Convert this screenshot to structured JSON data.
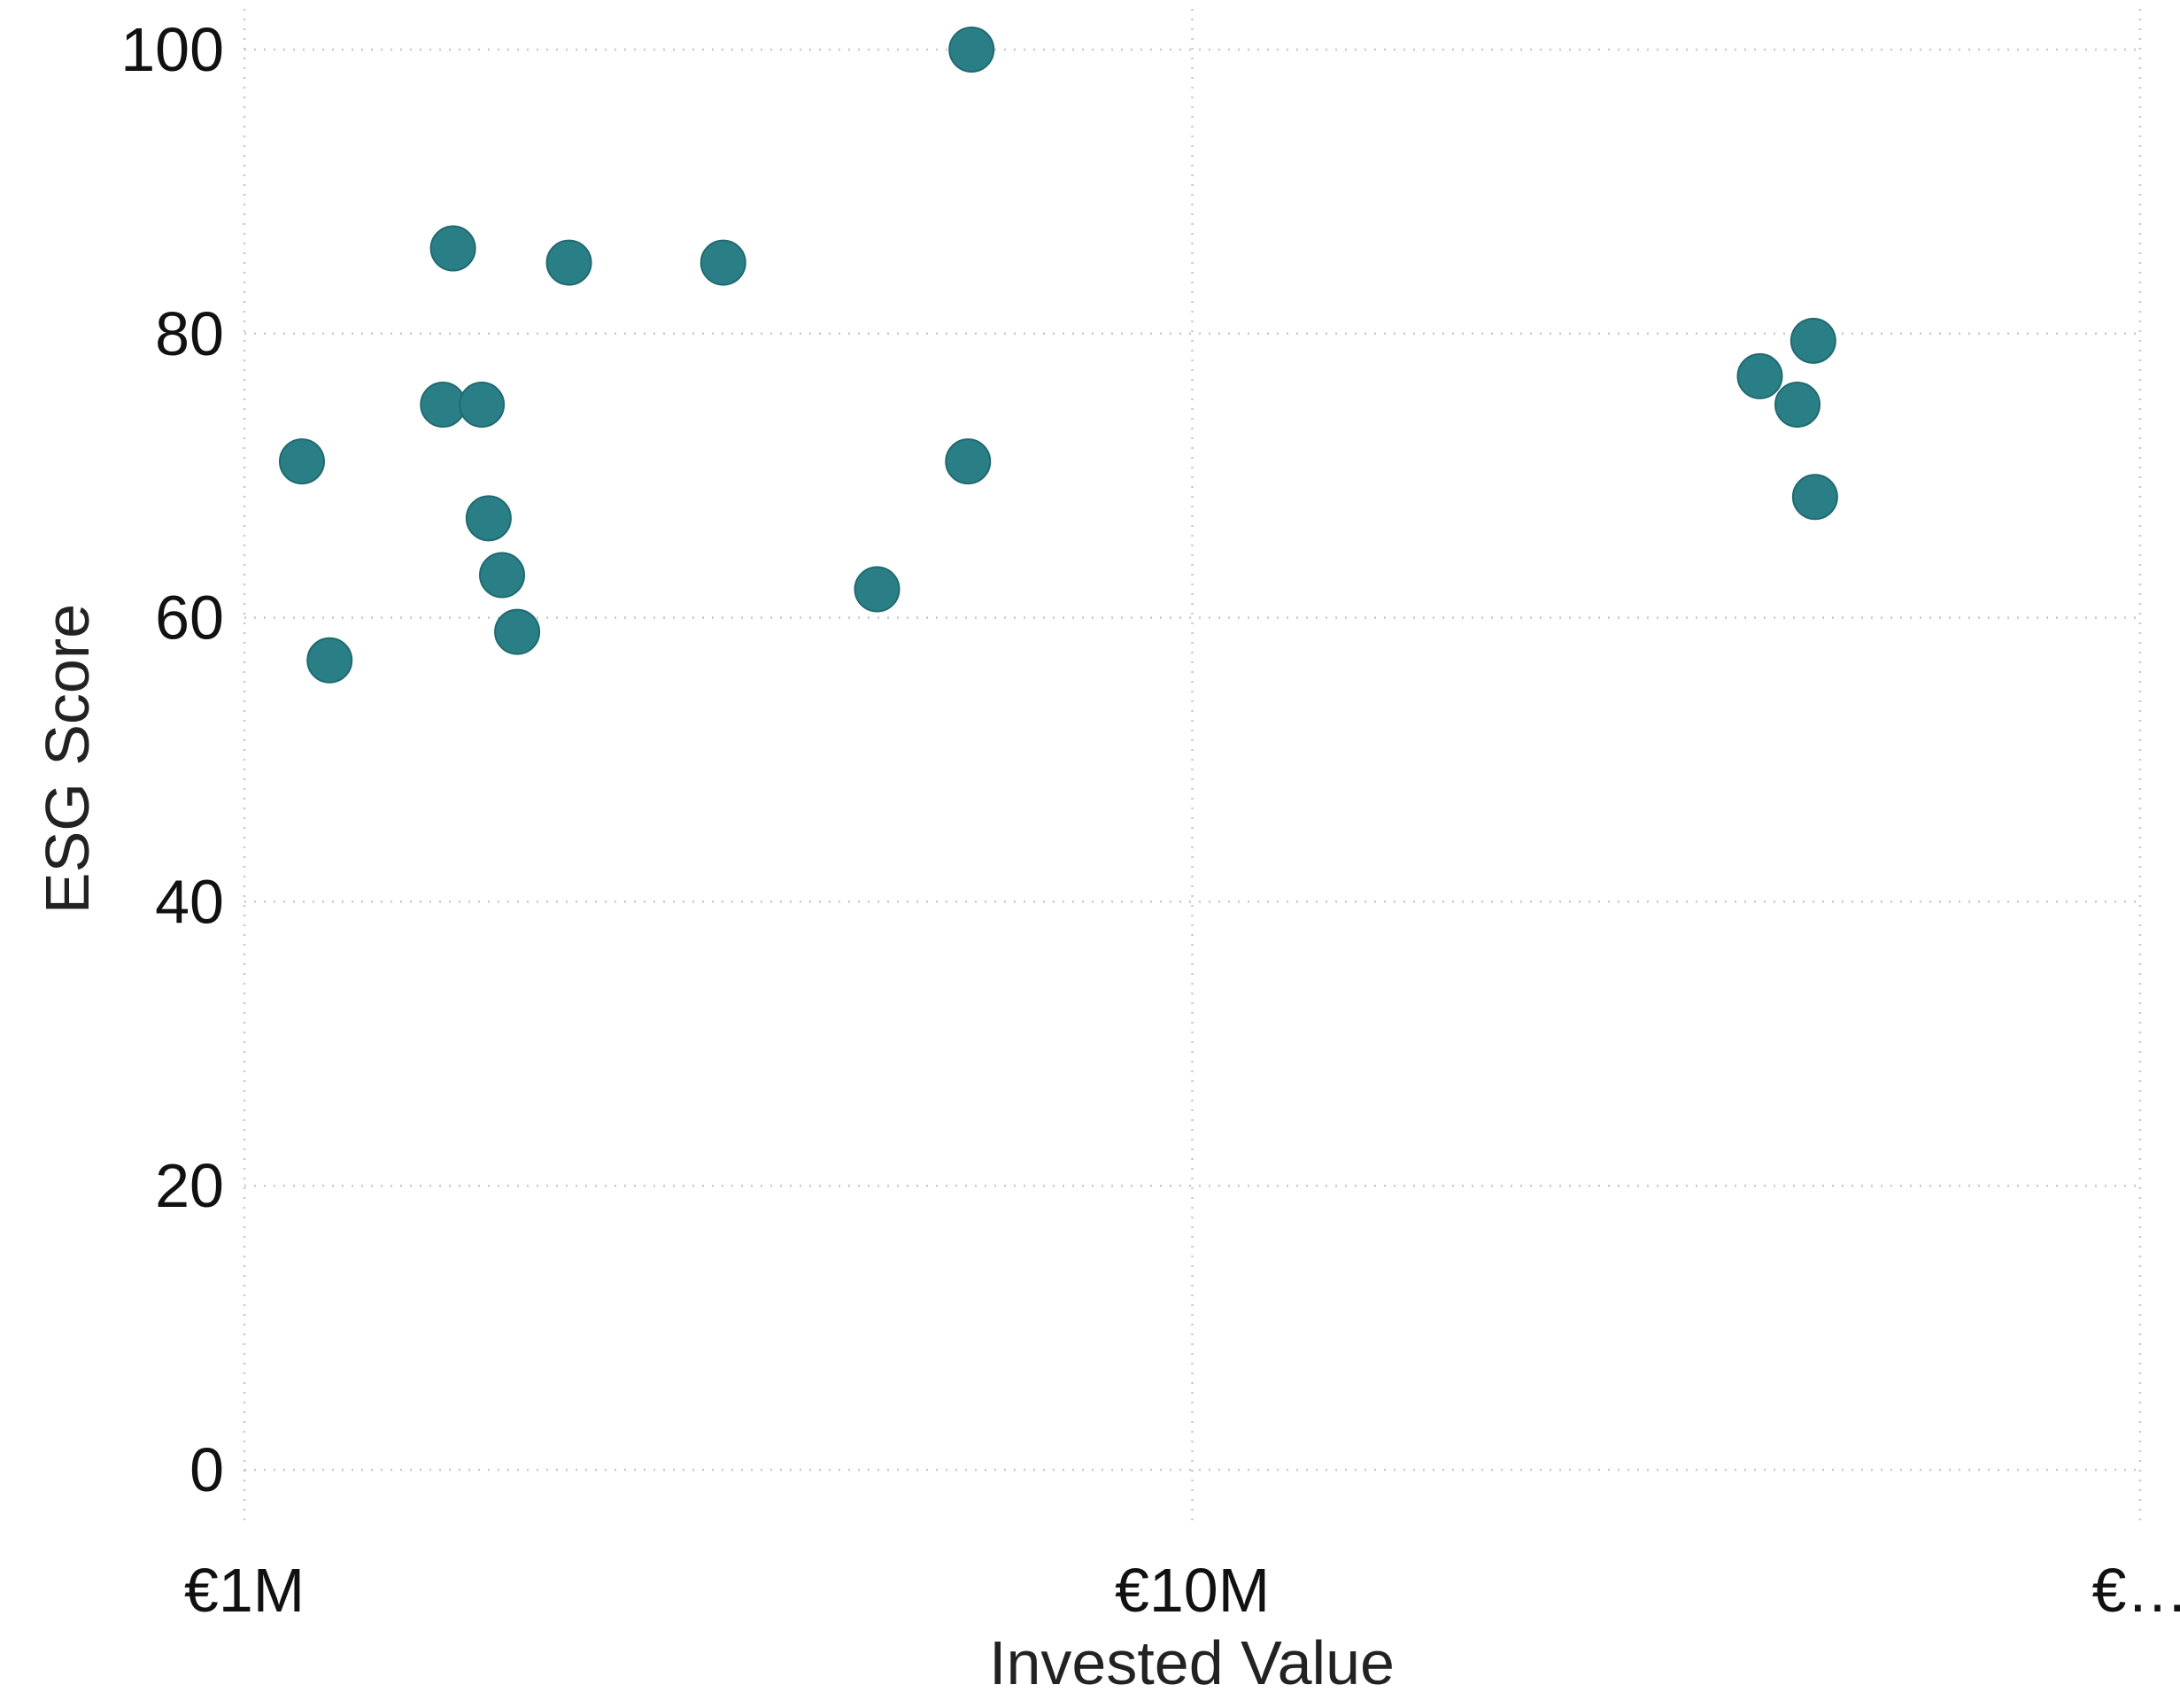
{
  "chart_data": {
    "type": "scatter",
    "xlabel": "Invested Value",
    "ylabel": "ESG Score",
    "x_scale": "log",
    "xlim": [
      1000000,
      100000000
    ],
    "ylim": [
      -5,
      103
    ],
    "x_ticks": [
      {
        "value": 1000000,
        "label": "€1M"
      },
      {
        "value": 10000000,
        "label": "€10M"
      },
      {
        "value": 100000000,
        "label": "€…"
      }
    ],
    "y_ticks": [
      0,
      20,
      40,
      60,
      80,
      100
    ],
    "grid": true,
    "marker_color": "#2a7f86",
    "points": [
      {
        "x": 1150000,
        "y": 71
      },
      {
        "x": 1230000,
        "y": 57
      },
      {
        "x": 1620000,
        "y": 75
      },
      {
        "x": 1660000,
        "y": 86
      },
      {
        "x": 1780000,
        "y": 75
      },
      {
        "x": 1810000,
        "y": 67
      },
      {
        "x": 1870000,
        "y": 63
      },
      {
        "x": 1940000,
        "y": 59
      },
      {
        "x": 2200000,
        "y": 85
      },
      {
        "x": 3200000,
        "y": 85
      },
      {
        "x": 4650000,
        "y": 62
      },
      {
        "x": 5800000,
        "y": 71
      },
      {
        "x": 5850000,
        "y": 100
      },
      {
        "x": 39700000,
        "y": 77
      },
      {
        "x": 43500000,
        "y": 75
      },
      {
        "x": 45200000,
        "y": 79.5
      },
      {
        "x": 45400000,
        "y": 68.5
      }
    ]
  }
}
